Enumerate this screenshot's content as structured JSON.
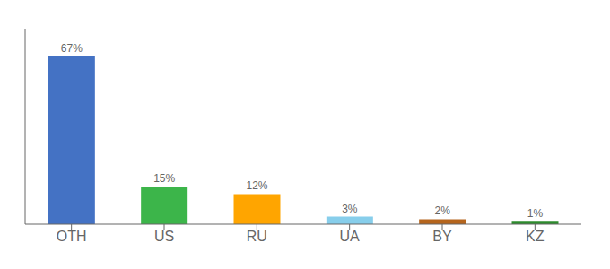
{
  "chart_data": {
    "type": "bar",
    "categories": [
      "OTH",
      "US",
      "RU",
      "UA",
      "BY",
      "KZ"
    ],
    "values": [
      67,
      15,
      12,
      3,
      2,
      1
    ],
    "value_labels": [
      "67%",
      "15%",
      "12%",
      "3%",
      "2%",
      "1%"
    ],
    "colors": [
      "#4472C4",
      "#3CB54A",
      "#FFA500",
      "#87CEEB",
      "#B5651D",
      "#2D8C2D"
    ],
    "ylim": [
      0,
      78
    ],
    "data_labels": true,
    "tick_labels": "x",
    "grid": false
  }
}
